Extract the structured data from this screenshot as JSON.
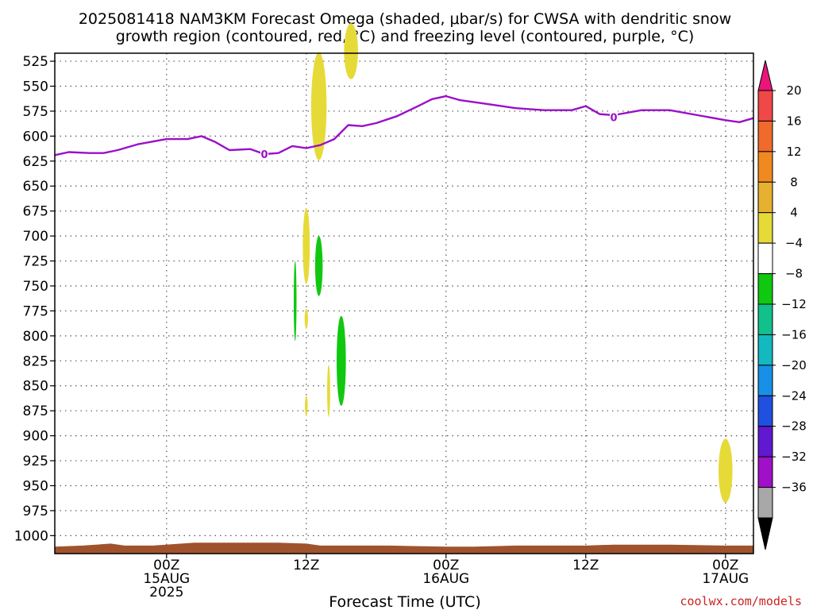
{
  "chart_data": {
    "type": "heatmap",
    "title_line1": "2025081418 NAM3KM Forecast Omega (shaded, μbar/s) for CWSA with dendritic snow",
    "title_line2": "growth region (contoured, red, °C) and freezing level (contoured, purple, °C)",
    "xlabel": "Forecast Time (UTC)",
    "credit": "coolwx.com/models",
    "x_range_hours": [
      -8,
      42
    ],
    "y_range_hpa": [
      517,
      1018
    ],
    "y_ticks": [
      525,
      550,
      575,
      600,
      625,
      650,
      675,
      700,
      725,
      750,
      775,
      800,
      825,
      850,
      875,
      900,
      925,
      950,
      975,
      1000
    ],
    "x_ticks": [
      {
        "hour": 0,
        "lines": [
          "00Z",
          "15AUG",
          "2025"
        ]
      },
      {
        "hour": 10,
        "lines": [
          "12Z"
        ]
      },
      {
        "hour": 20,
        "lines": [
          "00Z",
          "16AUG"
        ]
      },
      {
        "hour": 30,
        "lines": [
          "12Z"
        ]
      },
      {
        "hour": 40,
        "lines": [
          "00Z",
          "17AUG"
        ]
      }
    ],
    "colorbar": {
      "labels": [
        "20",
        "16",
        "12",
        "8",
        "4",
        "−4",
        "−8",
        "−12",
        "−16",
        "−20",
        "−24",
        "−28",
        "−32",
        "−36"
      ],
      "top_color": "#e8157a",
      "bottom_color": "#000000",
      "bands": [
        "#f04848",
        "#f06a2c",
        "#f08a20",
        "#e8b030",
        "#e6da38",
        "#ffffff",
        "#10c810",
        "#12c08c",
        "#14b8c0",
        "#1890e8",
        "#2050e0",
        "#6018d0",
        "#a010c8",
        "#a8a8a8"
      ]
    },
    "freezing_level": {
      "label": "0",
      "color": "#9a10c8",
      "label_points": [
        {
          "hour": 7,
          "p": 618
        },
        {
          "hour": 32,
          "p": 581
        }
      ],
      "points": [
        {
          "hour": -8,
          "p": 619
        },
        {
          "hour": -7,
          "p": 616
        },
        {
          "hour": -5.5,
          "p": 617
        },
        {
          "hour": -4.5,
          "p": 617
        },
        {
          "hour": -3.5,
          "p": 614
        },
        {
          "hour": -2,
          "p": 608
        },
        {
          "hour": 0,
          "p": 603
        },
        {
          "hour": 1.5,
          "p": 603
        },
        {
          "hour": 2.5,
          "p": 600
        },
        {
          "hour": 3.5,
          "p": 606
        },
        {
          "hour": 4.5,
          "p": 614
        },
        {
          "hour": 6,
          "p": 613
        },
        {
          "hour": 7,
          "p": 618
        },
        {
          "hour": 8,
          "p": 617
        },
        {
          "hour": 9,
          "p": 610
        },
        {
          "hour": 10,
          "p": 612
        },
        {
          "hour": 11,
          "p": 609
        },
        {
          "hour": 12,
          "p": 603
        },
        {
          "hour": 13,
          "p": 589
        },
        {
          "hour": 14,
          "p": 590
        },
        {
          "hour": 15,
          "p": 587
        },
        {
          "hour": 16.5,
          "p": 580
        },
        {
          "hour": 18,
          "p": 570
        },
        {
          "hour": 19,
          "p": 563
        },
        {
          "hour": 20,
          "p": 560
        },
        {
          "hour": 21,
          "p": 564
        },
        {
          "hour": 23,
          "p": 568
        },
        {
          "hour": 25,
          "p": 572
        },
        {
          "hour": 27,
          "p": 574
        },
        {
          "hour": 29,
          "p": 574
        },
        {
          "hour": 30,
          "p": 570
        },
        {
          "hour": 31,
          "p": 578
        },
        {
          "hour": 32,
          "p": 579
        },
        {
          "hour": 34,
          "p": 574
        },
        {
          "hour": 36,
          "p": 574
        },
        {
          "hour": 38,
          "p": 579
        },
        {
          "hour": 40,
          "p": 584
        },
        {
          "hour": 41,
          "p": 586
        },
        {
          "hour": 42,
          "p": 582
        }
      ]
    },
    "omega_features": [
      {
        "kind": "ellipse",
        "hour": 10.9,
        "p": 570,
        "rh": 0.55,
        "rp": 54,
        "color": "#e6da38"
      },
      {
        "kind": "ellipse",
        "hour": 13.2,
        "p": 515,
        "rh": 0.5,
        "rp": 28,
        "color": "#e6da38"
      },
      {
        "kind": "ellipse",
        "hour": 10.0,
        "p": 710,
        "rh": 0.25,
        "rp": 38,
        "color": "#e6da38"
      },
      {
        "kind": "ellipse",
        "hour": 10.0,
        "p": 783,
        "rh": 0.12,
        "rp": 10,
        "color": "#e6da38"
      },
      {
        "kind": "ellipse",
        "hour": 9.2,
        "p": 765,
        "rh": 0.1,
        "rp": 40,
        "color": "#10c810"
      },
      {
        "kind": "ellipse",
        "hour": 10.9,
        "p": 730,
        "rh": 0.27,
        "rp": 30,
        "color": "#10c810"
      },
      {
        "kind": "ellipse",
        "hour": 12.5,
        "p": 825,
        "rh": 0.33,
        "rp": 45,
        "color": "#10c810"
      },
      {
        "kind": "ellipse",
        "hour": 11.6,
        "p": 855,
        "rh": 0.11,
        "rp": 26,
        "color": "#e6da38"
      },
      {
        "kind": "ellipse",
        "hour": 10.0,
        "p": 870,
        "rh": 0.1,
        "rp": 10,
        "color": "#e6da38"
      },
      {
        "kind": "ellipse",
        "hour": 40.0,
        "p": 935,
        "rh": 0.5,
        "rp": 32,
        "color": "#e6da38"
      }
    ],
    "terrain_color": "#a0522d"
  }
}
